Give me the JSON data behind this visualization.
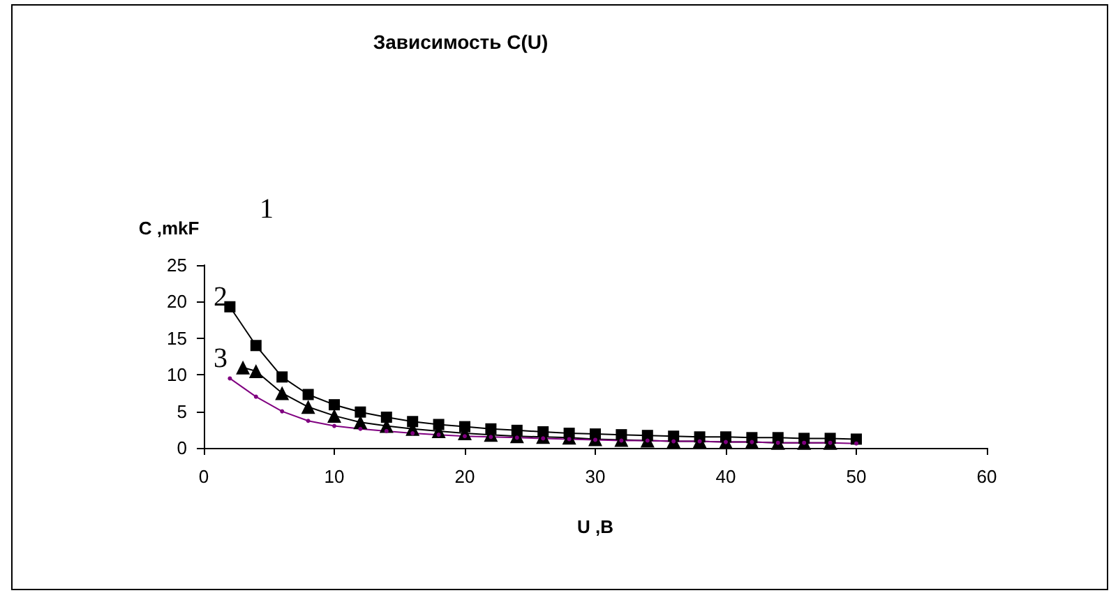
{
  "chart_data": {
    "type": "line",
    "title": "Зависимость C(U)",
    "xlabel": "U ,B",
    "ylabel": "C ,mkF",
    "xlim": [
      0,
      60
    ],
    "xticks": [
      0,
      10,
      20,
      30,
      40,
      50,
      60
    ],
    "ylim": [
      0,
      25
    ],
    "yticks": [
      0,
      5,
      10,
      15,
      20,
      25
    ],
    "grid": false,
    "line_style": "solid",
    "series": [
      {
        "color": "#000000",
        "marker": "square",
        "x": [
          2,
          4,
          6,
          8,
          10,
          12,
          14,
          16,
          18,
          20,
          22,
          24,
          26,
          28,
          30,
          32,
          34,
          36,
          38,
          40,
          42,
          44,
          46,
          48,
          50
        ],
        "values": [
          19.3,
          14,
          9.7,
          7.3,
          5.9,
          4.9,
          4.2,
          3.6,
          3.2,
          2.9,
          2.6,
          2.4,
          2.2,
          2.0,
          1.9,
          1.8,
          1.7,
          1.6,
          1.5,
          1.5,
          1.4,
          1.4,
          1.3,
          1.3,
          1.2
        ]
      },
      {
        "color": "#000000",
        "marker": "triangle",
        "x": [
          3,
          4,
          6,
          8,
          10,
          12,
          14,
          16,
          18,
          20,
          22,
          24,
          26,
          28,
          30,
          32,
          34,
          36,
          38,
          40,
          42,
          44,
          46,
          48
        ],
        "values": [
          11,
          10.5,
          7.5,
          5.6,
          4.4,
          3.5,
          3.0,
          2.6,
          2.3,
          2.0,
          1.8,
          1.6,
          1.5,
          1.4,
          1.2,
          1.1,
          1.0,
          0.9,
          0.9,
          0.8,
          0.8,
          0.7,
          0.7,
          0.7
        ]
      },
      {
        "color": "#800080",
        "marker": "circle",
        "x": [
          2,
          4,
          6,
          8,
          10,
          12,
          14,
          16,
          18,
          20,
          22,
          24,
          26,
          28,
          30,
          32,
          34,
          36,
          38,
          40,
          42,
          44,
          46,
          48,
          50
        ],
        "values": [
          9.5,
          7.0,
          5.0,
          3.7,
          3.0,
          2.6,
          2.3,
          2.0,
          1.8,
          1.6,
          1.5,
          1.4,
          1.3,
          1.2,
          1.1,
          1.0,
          1.0,
          0.9,
          0.9,
          0.8,
          0.8,
          0.7,
          0.7,
          0.7,
          0.6
        ]
      }
    ],
    "annotations": [
      "1",
      "2",
      "3"
    ]
  }
}
